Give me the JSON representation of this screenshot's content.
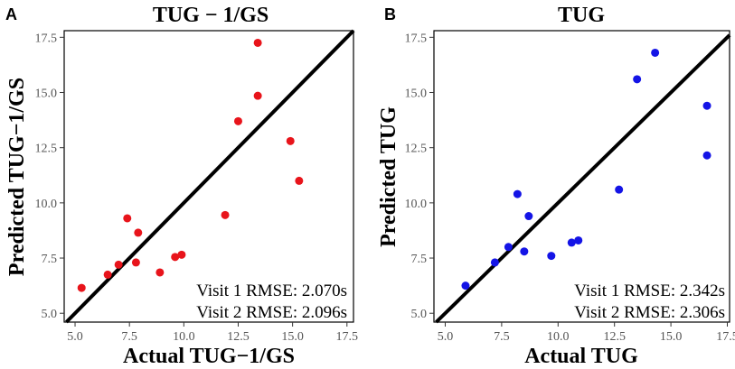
{
  "chart_data": [
    {
      "panel": "A",
      "type": "scatter",
      "title": "TUG − 1/GS",
      "xlabel": "Actual TUG−1/GS",
      "ylabel": "Predicted TUG−1/GS",
      "xlim": [
        4.5,
        17.8
      ],
      "ylim": [
        4.6,
        17.8
      ],
      "xticks": [
        "5.0",
        "7.5",
        "10.0",
        "12.5",
        "15.0",
        "17.5"
      ],
      "yticks": [
        "5.0",
        "7.5",
        "10.0",
        "12.5",
        "15.0",
        "17.5"
      ],
      "point_color": "#e8141b",
      "annotations": [
        "Visit 1 RMSE: 2.070s",
        "Visit 2 RMSE: 2.096s"
      ],
      "points": [
        {
          "x": 5.3,
          "y": 6.15
        },
        {
          "x": 6.5,
          "y": 6.75
        },
        {
          "x": 7.0,
          "y": 7.2
        },
        {
          "x": 7.4,
          "y": 9.3
        },
        {
          "x": 7.8,
          "y": 7.3
        },
        {
          "x": 7.9,
          "y": 8.65
        },
        {
          "x": 8.9,
          "y": 6.85
        },
        {
          "x": 9.6,
          "y": 7.55
        },
        {
          "x": 9.9,
          "y": 7.65
        },
        {
          "x": 11.9,
          "y": 9.45
        },
        {
          "x": 12.5,
          "y": 13.7
        },
        {
          "x": 13.4,
          "y": 14.85
        },
        {
          "x": 13.4,
          "y": 17.25
        },
        {
          "x": 14.9,
          "y": 12.8
        },
        {
          "x": 15.3,
          "y": 11.0
        }
      ]
    },
    {
      "panel": "B",
      "type": "scatter",
      "title": "TUG",
      "xlabel": "Actual TUG",
      "ylabel": "Predicted TUG",
      "xlim": [
        4.5,
        17.6
      ],
      "ylim": [
        4.6,
        17.8
      ],
      "xticks": [
        "5.0",
        "7.5",
        "10.0",
        "12.5",
        "15.0",
        "17.5"
      ],
      "yticks": [
        "5.0",
        "7.5",
        "10.0",
        "12.5",
        "15.0",
        "17.5"
      ],
      "point_color": "#1414e6",
      "annotations": [
        "Visit 1 RMSE: 2.342s",
        "Visit 2 RMSE: 2.306s"
      ],
      "points": [
        {
          "x": 5.9,
          "y": 6.25
        },
        {
          "x": 7.2,
          "y": 7.3
        },
        {
          "x": 7.8,
          "y": 8.0
        },
        {
          "x": 8.2,
          "y": 10.4
        },
        {
          "x": 8.5,
          "y": 7.8
        },
        {
          "x": 8.7,
          "y": 9.4
        },
        {
          "x": 9.7,
          "y": 7.6
        },
        {
          "x": 10.6,
          "y": 8.2
        },
        {
          "x": 10.9,
          "y": 8.3
        },
        {
          "x": 12.7,
          "y": 10.6
        },
        {
          "x": 13.5,
          "y": 15.6
        },
        {
          "x": 14.3,
          "y": 16.8
        },
        {
          "x": 16.6,
          "y": 14.4
        },
        {
          "x": 16.6,
          "y": 12.15
        }
      ]
    }
  ]
}
